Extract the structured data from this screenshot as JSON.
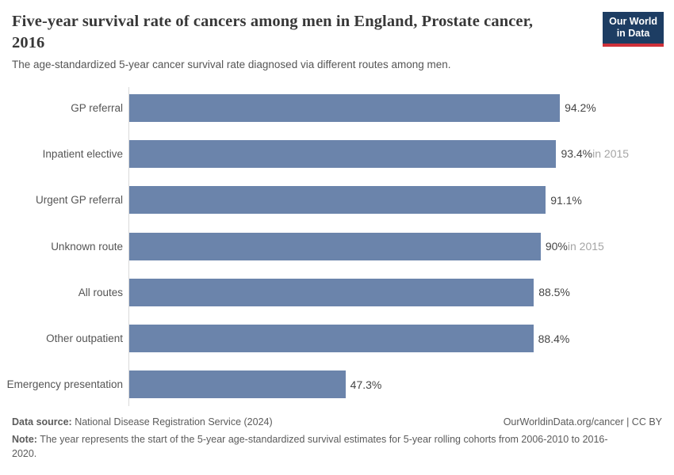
{
  "header": {
    "title": "Five-year survival rate of cancers among men in England, Prostate cancer, 2016",
    "subtitle": "The age-standardized 5-year cancer survival rate diagnosed via different routes among men."
  },
  "logo": {
    "line1": "Our World",
    "line2": "in Data"
  },
  "chart_data": {
    "type": "bar",
    "orientation": "horizontal",
    "title": "Five-year survival rate of cancers among men in England, Prostate cancer, 2016",
    "categories": [
      "GP referral",
      "Inpatient elective",
      "Urgent GP referral",
      "Unknown route",
      "All routes",
      "Other outpatient",
      "Emergency presentation"
    ],
    "values": [
      94.2,
      93.4,
      91.1,
      90,
      88.5,
      88.4,
      47.3
    ],
    "value_labels": [
      "94.2%",
      "93.4%",
      "91.1%",
      "90%",
      "88.5%",
      "88.4%",
      "47.3%"
    ],
    "annotations": [
      "",
      "in 2015",
      "",
      "in 2015",
      "",
      "",
      ""
    ],
    "unit": "%",
    "xlim": [
      0,
      100
    ],
    "grid": false,
    "legend": false,
    "bar_color": "#6b84ab",
    "axis_line_color": "#dadada"
  },
  "footer": {
    "datasource_label": "Data source:",
    "datasource_text": " National Disease Registration Service (2024)",
    "origin_text": "OurWorldinData.org/cancer | CC BY",
    "note_label": "Note:",
    "note_text": " The year represents the start of the 5-year age-standardized survival estimates for 5-year rolling cohorts from 2006-2010 to 2016-2020."
  }
}
